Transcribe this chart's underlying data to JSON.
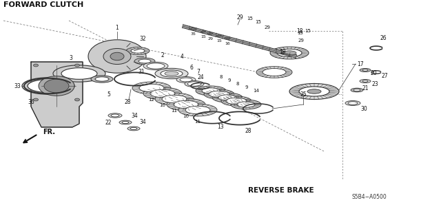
{
  "bg_color": "#ffffff",
  "forward_clutch_label": "FORWARD CLUTCH",
  "reverse_brake_label": "REVERSE BRAKE",
  "diagram_code": "S5B4−A0500",
  "fr_label": "FR.",
  "text_color": "#111111",
  "gray_dark": "#333333",
  "gray_mid": "#666666",
  "gray_light": "#bbbbbb",
  "gray_fill": "#dddddd",
  "white": "#ffffff"
}
